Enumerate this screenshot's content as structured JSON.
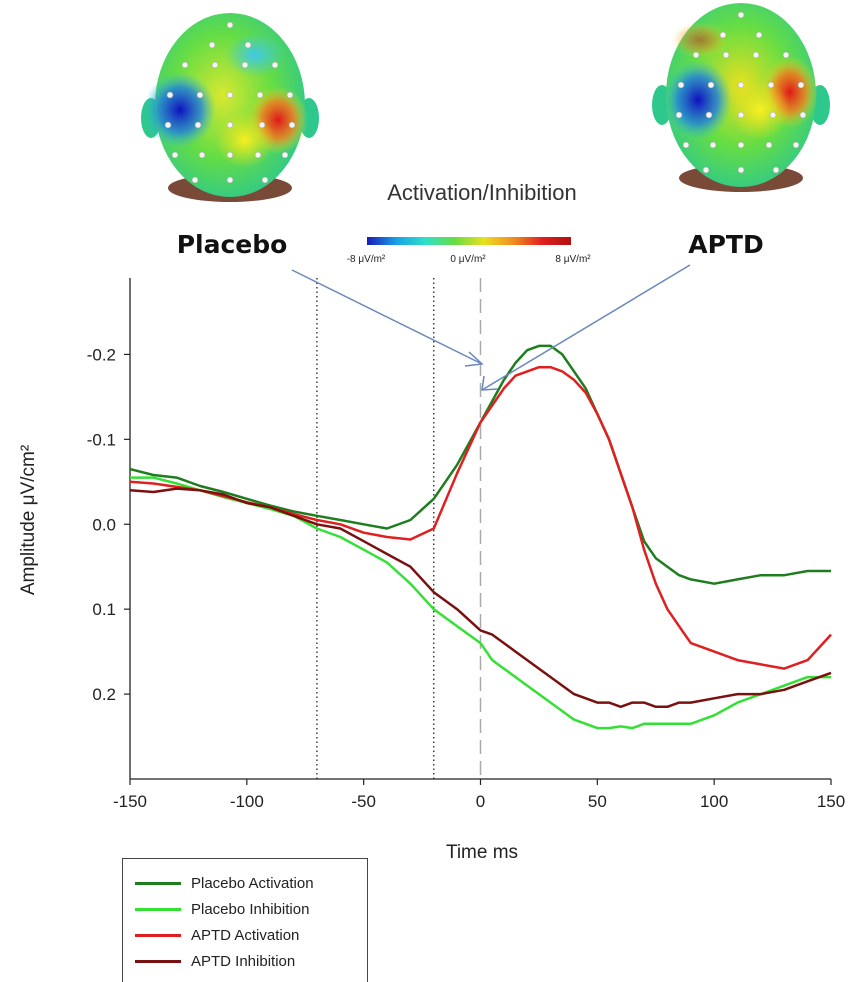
{
  "head_maps": {
    "title": "Activation/Inhibition",
    "left_label": "Placebo",
    "right_label": "APTD",
    "colorbar": {
      "min_label": "-8 μV/m²",
      "mid_label": "0 μV/m²",
      "max_label": "8 μV/m²",
      "colors": [
        "#1a1ab8",
        "#1aa0e6",
        "#2ee0c8",
        "#66dd44",
        "#e8e020",
        "#f09020",
        "#e02020",
        "#b01010"
      ]
    }
  },
  "chart_data": {
    "type": "line",
    "xlabel": "Time ms",
    "ylabel": "Amplitude μV/cm²",
    "xlim": [
      -150,
      150
    ],
    "ylim": [
      -0.29,
      0.3
    ],
    "y_inverted": true,
    "x_ticks": [
      "-150",
      "-100",
      "-50",
      "0",
      "50",
      "100",
      "150"
    ],
    "y_ticks": [
      "-0.2",
      "-0.1",
      "0.0",
      "0.1",
      "0.2"
    ],
    "vertical_markers": [
      {
        "x": -70,
        "style": "dotted"
      },
      {
        "x": -20,
        "style": "dotted"
      },
      {
        "x": 0,
        "style": "dashed"
      }
    ],
    "x": [
      -150,
      -140,
      -130,
      -120,
      -110,
      -100,
      -90,
      -80,
      -70,
      -60,
      -50,
      -40,
      -30,
      -20,
      -10,
      0,
      5,
      10,
      15,
      20,
      25,
      30,
      35,
      40,
      45,
      50,
      55,
      60,
      65,
      70,
      75,
      80,
      85,
      90,
      100,
      110,
      120,
      130,
      140,
      150
    ],
    "series": [
      {
        "name": "Placebo Activation",
        "color": "#1e7d1e",
        "values": [
          -0.065,
          -0.058,
          -0.055,
          -0.045,
          -0.038,
          -0.03,
          -0.022,
          -0.015,
          -0.01,
          -0.005,
          0.0,
          0.005,
          -0.005,
          -0.03,
          -0.07,
          -0.12,
          -0.145,
          -0.17,
          -0.19,
          -0.205,
          -0.21,
          -0.21,
          -0.2,
          -0.18,
          -0.16,
          -0.13,
          -0.1,
          -0.06,
          -0.02,
          0.02,
          0.04,
          0.05,
          0.06,
          0.065,
          0.07,
          0.065,
          0.06,
          0.06,
          0.055,
          0.055
        ]
      },
      {
        "name": "Placebo Inhibition",
        "color": "#35e035",
        "values": [
          -0.055,
          -0.055,
          -0.048,
          -0.04,
          -0.032,
          -0.025,
          -0.018,
          -0.01,
          0.005,
          0.015,
          0.03,
          0.045,
          0.07,
          0.1,
          0.12,
          0.14,
          0.16,
          0.17,
          0.18,
          0.19,
          0.2,
          0.21,
          0.22,
          0.23,
          0.235,
          0.24,
          0.24,
          0.238,
          0.24,
          0.235,
          0.235,
          0.235,
          0.235,
          0.235,
          0.225,
          0.21,
          0.2,
          0.19,
          0.18,
          0.18
        ]
      },
      {
        "name": "APTD Activation",
        "color": "#e02020",
        "values": [
          -0.05,
          -0.048,
          -0.044,
          -0.04,
          -0.033,
          -0.026,
          -0.02,
          -0.012,
          -0.005,
          0.0,
          0.01,
          0.015,
          0.018,
          0.005,
          -0.06,
          -0.12,
          -0.14,
          -0.16,
          -0.175,
          -0.18,
          -0.185,
          -0.185,
          -0.18,
          -0.17,
          -0.155,
          -0.13,
          -0.1,
          -0.06,
          -0.02,
          0.03,
          0.07,
          0.1,
          0.12,
          0.14,
          0.15,
          0.16,
          0.165,
          0.17,
          0.16,
          0.13
        ]
      },
      {
        "name": "APTD Inhibition",
        "color": "#7a1010",
        "values": [
          -0.04,
          -0.038,
          -0.042,
          -0.04,
          -0.035,
          -0.025,
          -0.02,
          -0.01,
          0.0,
          0.005,
          0.02,
          0.035,
          0.05,
          0.08,
          0.1,
          0.125,
          0.13,
          0.14,
          0.15,
          0.16,
          0.17,
          0.18,
          0.19,
          0.2,
          0.205,
          0.21,
          0.21,
          0.215,
          0.21,
          0.21,
          0.215,
          0.215,
          0.21,
          0.21,
          0.205,
          0.2,
          0.2,
          0.195,
          0.185,
          0.175
        ]
      }
    ]
  },
  "legend": {
    "items": [
      {
        "label": "Placebo Activation",
        "color": "#1e7d1e"
      },
      {
        "label": "Placebo Inhibition",
        "color": "#35e035"
      },
      {
        "label": "APTD Activation",
        "color": "#e02020"
      },
      {
        "label": "APTD Inhibition",
        "color": "#7a1010"
      }
    ]
  }
}
